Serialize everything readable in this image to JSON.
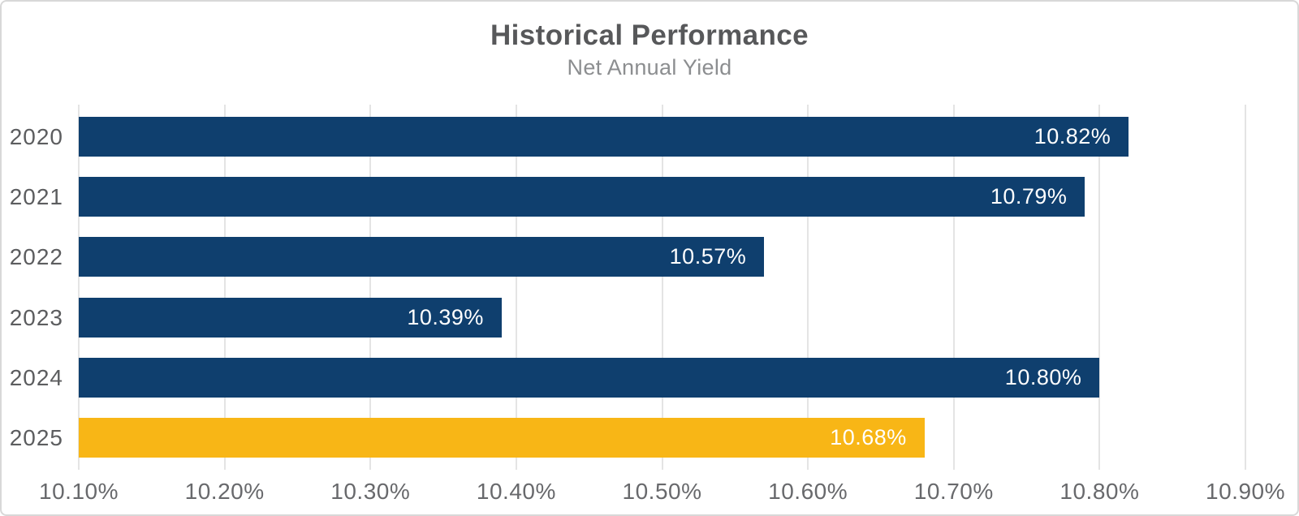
{
  "header": {
    "title": "Historical Performance",
    "subtitle": "Net Annual Yield"
  },
  "colors": {
    "bar_default": "#0f3f6e",
    "bar_highlight": "#f8b616",
    "value_label": "#ffffff",
    "gridline": "#e4e4e4",
    "title_text": "#57585a",
    "subtitle_text": "#8c8e90",
    "axis_text": "#68696c"
  },
  "chart_data": {
    "type": "bar",
    "orientation": "horizontal",
    "title": "Historical Performance",
    "subtitle": "Net Annual Yield",
    "xlabel": "",
    "ylabel": "",
    "categories": [
      "2020",
      "2021",
      "2022",
      "2023",
      "2024",
      "2025"
    ],
    "values": [
      10.82,
      10.79,
      10.57,
      10.39,
      10.8,
      10.68
    ],
    "value_labels": [
      "10.82%",
      "10.79%",
      "10.57%",
      "10.39%",
      "10.80%",
      "10.68%"
    ],
    "highlight_category": "2025",
    "xlim": [
      10.1,
      10.9
    ],
    "x_ticks": [
      10.1,
      10.2,
      10.3,
      10.4,
      10.5,
      10.6,
      10.7,
      10.8,
      10.9
    ],
    "x_tick_labels": [
      "10.10%",
      "10.20%",
      "10.30%",
      "10.40%",
      "10.50%",
      "10.60%",
      "10.70%",
      "10.80%",
      "10.90%"
    ],
    "grid": true,
    "legend": false
  }
}
